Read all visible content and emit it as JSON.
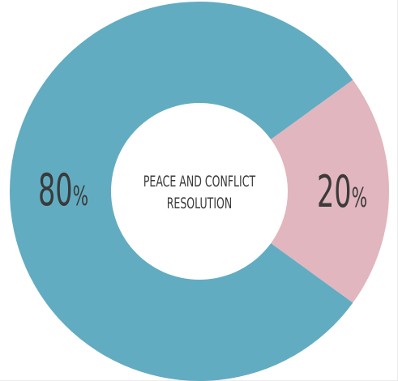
{
  "chart_data": {
    "type": "pie",
    "center_label": [
      "PEACE AND CONFLICT",
      "RESOLUTION"
    ],
    "slices": [
      {
        "value": 80,
        "number_label": "80",
        "unit": "%",
        "color": "#62acc2"
      },
      {
        "value": 20,
        "number_label": "20",
        "unit": "%",
        "color": "#e1b6be"
      }
    ],
    "background": "#ffffff"
  }
}
